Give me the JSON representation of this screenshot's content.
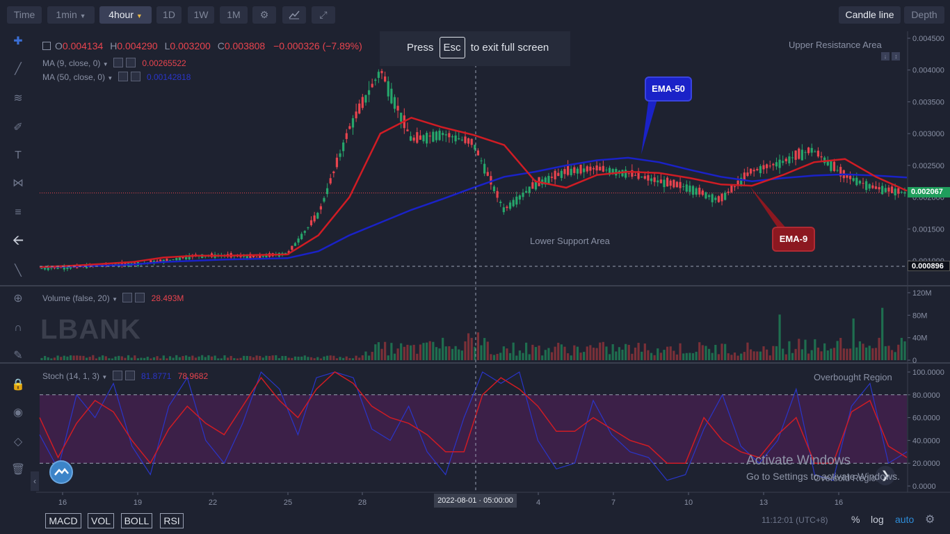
{
  "toolbar": {
    "time_label": "Time",
    "interval": "1min",
    "period": "4hour",
    "d1": "1D",
    "w1": "1W",
    "m1": "1M",
    "candle_line": "Candle line",
    "depth": "Depth"
  },
  "legend": {
    "o_key": "O",
    "o": "0.004134",
    "h_key": "H",
    "h": "0.004290",
    "l_key": "L",
    "l": "0.003200",
    "c_key": "C",
    "c": "0.003808",
    "change": "−0.000326 (−7.89%)",
    "ma9_label": "MA (9, close, 0)",
    "ma9_value": "0.00265522",
    "ma50_label": "MA (50, close, 0)",
    "ma50_value": "0.00142818"
  },
  "notice": {
    "press": "Press",
    "key": "Esc",
    "rest": "to exit full screen"
  },
  "annotations": {
    "upper": "Upper Resistance Area",
    "lower": "Lower Support Area",
    "ema50": "EMA-50",
    "ema9": "EMA-9",
    "overbought": "Overbought Region",
    "oversold": "Oversold Region"
  },
  "price_tags": {
    "last": "0.002067",
    "cross": "0.000896"
  },
  "volume": {
    "label": "Volume (false, 20)",
    "value": "28.493M",
    "ticks": [
      "120M",
      "80M",
      "40M",
      "0"
    ],
    "logo": "LBANK"
  },
  "stoch": {
    "label": "Stoch (14, 1, 3)",
    "k_value": "81.8771",
    "d_value": "78.9682",
    "ticks": [
      "100.0000",
      "80.0000",
      "60.0000",
      "40.0000",
      "20.0000",
      "0.0000"
    ]
  },
  "price_ticks": [
    "0.004500",
    "0.004000",
    "0.003500",
    "0.003000",
    "0.002500",
    "0.002000",
    "0.001500",
    "0.001000"
  ],
  "x_ticks": [
    "16",
    "19",
    "22",
    "25",
    "28",
    "4",
    "7",
    "10",
    "13",
    "16"
  ],
  "cursor_date": "2022-08-01 · 05:00:00",
  "bottom": {
    "macd": "MACD",
    "vol": "VOL",
    "boll": "BOLL",
    "rsi": "RSI",
    "clock": "11:12:01 (UTC+8)",
    "pct": "%",
    "log": "log",
    "auto": "auto"
  },
  "watermark": {
    "title": "Activate Windows",
    "sub": "Go to Settings to activate Windows."
  },
  "colors": {
    "up": "#26a66b",
    "down": "#e8444e",
    "ema9": "#d01c24",
    "ema50": "#1a22c8",
    "stoch_zone": "#3c2048",
    "stoch_d": "#d01c24",
    "stoch_k": "#2a35c9"
  },
  "chart_data": {
    "type": "candlestick",
    "series": [
      {
        "name": "EMA-9",
        "values": [
          0.0009,
          0.00092,
          0.00095,
          0.00098,
          0.00105,
          0.00108,
          0.00108,
          0.00109,
          0.0011,
          0.0014,
          0.002,
          0.003,
          0.00325,
          0.0031,
          0.00298,
          0.00282,
          0.00225,
          0.00215,
          0.00235,
          0.0024,
          0.00238,
          0.0023,
          0.0022,
          0.00218,
          0.00235,
          0.00255,
          0.0026,
          0.00232,
          0.0021
        ]
      },
      {
        "name": "EMA-50",
        "values": [
          0.0009,
          0.00091,
          0.00092,
          0.00094,
          0.00098,
          0.001,
          0.00102,
          0.00103,
          0.00104,
          0.00115,
          0.0014,
          0.0016,
          0.0018,
          0.00197,
          0.00215,
          0.00232,
          0.0024,
          0.0025,
          0.00258,
          0.00262,
          0.00255,
          0.00243,
          0.00232,
          0.00225,
          0.0023,
          0.00234,
          0.00236,
          0.00234,
          0.00231
        ]
      }
    ],
    "x": [
      "Jul 14",
      "Jul 16",
      "Jul 18",
      "Jul 20",
      "Jul 22",
      "Jul 24",
      "Jul 26",
      "Jul 28",
      "Jul 30",
      "Jul 31",
      "Aug 1",
      "Aug 2",
      "Aug 3",
      "Aug 4",
      "Aug 5",
      "Aug 6",
      "Aug 7",
      "Aug 8",
      "Aug 9",
      "Aug 10",
      "Aug 11",
      "Aug 12",
      "Aug 13",
      "Aug 14",
      "Aug 15",
      "Aug 16",
      "Aug 17",
      "Aug 18",
      "Aug 19"
    ],
    "close": [
      0.00088,
      0.0009,
      0.00093,
      0.00095,
      0.001,
      0.00108,
      0.00108,
      0.00106,
      0.00112,
      0.00175,
      0.0031,
      0.004,
      0.0029,
      0.003,
      0.00285,
      0.0018,
      0.0022,
      0.0024,
      0.00245,
      0.00238,
      0.00225,
      0.00215,
      0.00195,
      0.0024,
      0.00255,
      0.00275,
      0.00235,
      0.00215,
      0.00207
    ],
    "ylim": [
      0.00085,
      0.00455
    ],
    "volume_unit": "M",
    "volume_ylim": [
      0,
      125
    ],
    "stoch_ylim": [
      0,
      100
    ],
    "stoch_d": [
      60,
      25,
      55,
      75,
      65,
      40,
      20,
      50,
      70,
      55,
      45,
      70,
      95,
      75,
      60,
      85,
      100,
      90,
      70,
      60,
      55,
      45,
      30,
      30,
      80,
      95,
      85,
      70,
      48,
      48,
      60,
      50,
      40,
      35,
      20,
      20,
      60,
      40,
      30,
      25,
      45,
      60,
      20,
      20,
      65,
      75,
      35,
      25
    ],
    "stoch_k": [
      45,
      15,
      80,
      60,
      90,
      35,
      10,
      70,
      95,
      40,
      20,
      55,
      100,
      85,
      45,
      95,
      100,
      95,
      50,
      40,
      70,
      30,
      10,
      60,
      100,
      90,
      100,
      40,
      15,
      20,
      75,
      45,
      30,
      25,
      5,
      10,
      50,
      80,
      35,
      20,
      40,
      85,
      10,
      5,
      70,
      90,
      20,
      30
    ],
    "ema9_marker_y": 0.002067,
    "cursor_x": "2022-08-01 05:00:00"
  }
}
